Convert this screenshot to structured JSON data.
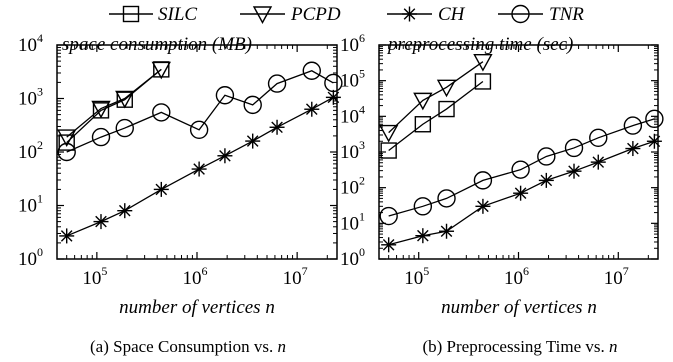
{
  "legend": {
    "entries": [
      {
        "label": "SILC",
        "marker": "square"
      },
      {
        "label": "PCPD",
        "marker": "triangle-down"
      },
      {
        "label": "CH",
        "marker": "asterisk"
      },
      {
        "label": "TNR",
        "marker": "circle"
      }
    ]
  },
  "chart_data": [
    {
      "type": "line",
      "title": "space consumption (MB)",
      "xlabel": "number of vertices n",
      "caption": "(a) Space Consumption vs. n",
      "caption_math": "n",
      "x_scale": "log",
      "y_scale": "log",
      "xlim": [
        40000,
        25000000
      ],
      "ylim": [
        1,
        10000
      ],
      "x_ticks": [
        {
          "base": "10",
          "exp": "5",
          "value": 100000
        },
        {
          "base": "10",
          "exp": "6",
          "value": 1000000
        },
        {
          "base": "10",
          "exp": "7",
          "value": 10000000
        }
      ],
      "y_ticks": [
        {
          "base": "10",
          "exp": "0",
          "value": 1
        },
        {
          "base": "10",
          "exp": "1",
          "value": 10
        },
        {
          "base": "10",
          "exp": "2",
          "value": 100
        },
        {
          "base": "10",
          "exp": "3",
          "value": 1000
        },
        {
          "base": "10",
          "exp": "4",
          "value": 10000
        }
      ],
      "series": [
        {
          "name": "SILC",
          "marker": "square",
          "x": [
            50000,
            110000,
            190000,
            440000
          ],
          "y": [
            150,
            600,
            950,
            3500
          ]
        },
        {
          "name": "PCPD",
          "marker": "triangle-down",
          "x": [
            50000,
            110000,
            190000,
            440000
          ],
          "y": [
            190,
            650,
            1000,
            3500
          ]
        },
        {
          "name": "CH",
          "marker": "asterisk",
          "x": [
            50000,
            110000,
            190000,
            440000,
            1050000,
            1900000,
            3600000,
            6300000,
            14000000,
            23000000
          ],
          "y": [
            2.7,
            5,
            8,
            20,
            48,
            85,
            160,
            290,
            630,
            1050
          ]
        },
        {
          "name": "TNR",
          "marker": "circle",
          "x": [
            50000,
            110000,
            190000,
            440000,
            1050000,
            1900000,
            3600000,
            6300000,
            14000000,
            23000000
          ],
          "y": [
            100,
            190,
            280,
            550,
            260,
            1150,
            760,
            1900,
            3300,
            1950
          ]
        }
      ]
    },
    {
      "type": "line",
      "title": "preprocessing time (sec)",
      "xlabel": "number of vertices n",
      "caption": "(b) Preprocessing Time vs. n",
      "caption_math": "n",
      "x_scale": "log",
      "y_scale": "log",
      "xlim": [
        40000,
        25000000
      ],
      "ylim": [
        1,
        1000000
      ],
      "x_ticks": [
        {
          "base": "10",
          "exp": "5",
          "value": 100000
        },
        {
          "base": "10",
          "exp": "6",
          "value": 1000000
        },
        {
          "base": "10",
          "exp": "7",
          "value": 10000000
        }
      ],
      "y_ticks": [
        {
          "base": "10",
          "exp": "0",
          "value": 1
        },
        {
          "base": "10",
          "exp": "1",
          "value": 10
        },
        {
          "base": "10",
          "exp": "2",
          "value": 100
        },
        {
          "base": "10",
          "exp": "3",
          "value": 1000
        },
        {
          "base": "10",
          "exp": "4",
          "value": 10000
        },
        {
          "base": "10",
          "exp": "5",
          "value": 100000
        },
        {
          "base": "10",
          "exp": "6",
          "value": 1000000
        }
      ],
      "series": [
        {
          "name": "SILC",
          "marker": "square",
          "x": [
            50000,
            110000,
            190000,
            440000
          ],
          "y": [
            1100,
            6000,
            16000,
            95000
          ]
        },
        {
          "name": "PCPD",
          "marker": "triangle-down",
          "x": [
            50000,
            110000,
            190000,
            440000
          ],
          "y": [
            3500,
            28000,
            65000,
            340000
          ]
        },
        {
          "name": "CH",
          "marker": "asterisk",
          "x": [
            50000,
            110000,
            190000,
            440000,
            1050000,
            1900000,
            3600000,
            6300000,
            14000000,
            23000000
          ],
          "y": [
            2.5,
            4.5,
            6,
            30,
            70,
            160,
            290,
            520,
            1250,
            2000
          ]
        },
        {
          "name": "TNR",
          "marker": "circle",
          "x": [
            50000,
            110000,
            190000,
            440000,
            1050000,
            1900000,
            3600000,
            6300000,
            14000000,
            23000000
          ],
          "y": [
            16,
            30,
            50,
            160,
            320,
            750,
            1300,
            2500,
            5500,
            8500
          ]
        }
      ]
    }
  ]
}
